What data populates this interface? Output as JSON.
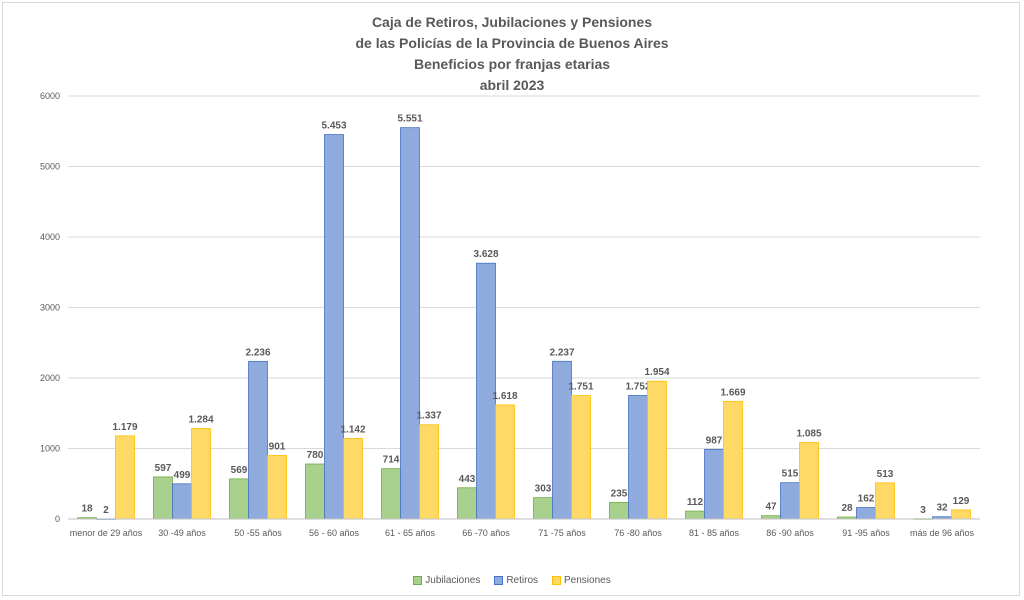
{
  "colors": {
    "Jubilaciones": {
      "fill": "#a9d18e",
      "stroke": "#70ad47"
    },
    "Retiros": {
      "fill": "#8faadc",
      "stroke": "#4472c4"
    },
    "Pensiones": {
      "fill": "#ffd966",
      "stroke": "#ffc000"
    },
    "grid": "#d9d9d9",
    "text": "#595959"
  },
  "chart_data": {
    "type": "bar",
    "title": [
      "Caja de Retiros, Jubilaciones y Pensiones",
      "de las Policías de la Provincia de Buenos Aires",
      "Beneficios por franjas etarias",
      "abril 2023"
    ],
    "categories": [
      "menor de 29 años",
      "30 -49 años",
      "50 -55 años",
      "56 - 60 años",
      "61 - 65 años",
      "66 -70 años",
      "71 -75 años",
      "76 -80 años",
      "81 - 85 años",
      "86 -90 años",
      "91 -95 años",
      "más de 96 años"
    ],
    "series": [
      {
        "name": "Jubilaciones",
        "values": [
          18,
          597,
          569,
          780,
          714,
          443,
          303,
          235,
          112,
          47,
          28,
          3
        ],
        "labels": [
          "18",
          "597",
          "569",
          "780",
          "714",
          "443",
          "303",
          "235",
          "112",
          "47",
          "28",
          "3"
        ]
      },
      {
        "name": "Retiros",
        "values": [
          2,
          499,
          2236,
          5453,
          5551,
          3628,
          2237,
          1752,
          987,
          515,
          162,
          32
        ],
        "labels": [
          "2",
          "499",
          "2.236",
          "5.453",
          "5.551",
          "3.628",
          "2.237",
          "1.752",
          "987",
          "515",
          "162",
          "32"
        ]
      },
      {
        "name": "Pensiones",
        "values": [
          1179,
          1284,
          901,
          1142,
          1337,
          1618,
          1751,
          1954,
          1669,
          1085,
          513,
          129
        ],
        "labels": [
          "1.179",
          "1.284",
          "901",
          "1.142",
          "1.337",
          "1.618",
          "1.751",
          "1.954",
          "1.669",
          "1.085",
          "513",
          "129"
        ]
      }
    ],
    "ylim": [
      0,
      6000
    ],
    "yticks": [
      "0",
      "1000",
      "2000",
      "3000",
      "4000",
      "5000",
      "6000"
    ],
    "grid": true,
    "legend_position": "bottom"
  }
}
